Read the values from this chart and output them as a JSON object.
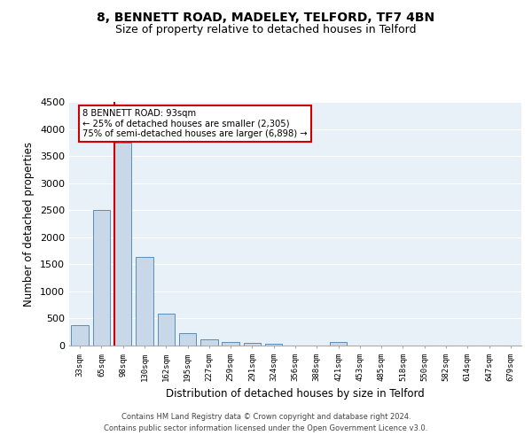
{
  "title": "8, BENNETT ROAD, MADELEY, TELFORD, TF7 4BN",
  "subtitle": "Size of property relative to detached houses in Telford",
  "xlabel": "Distribution of detached houses by size in Telford",
  "ylabel": "Number of detached properties",
  "categories": [
    "33sqm",
    "65sqm",
    "98sqm",
    "130sqm",
    "162sqm",
    "195sqm",
    "227sqm",
    "259sqm",
    "291sqm",
    "324sqm",
    "356sqm",
    "388sqm",
    "421sqm",
    "453sqm",
    "485sqm",
    "518sqm",
    "550sqm",
    "582sqm",
    "614sqm",
    "647sqm",
    "679sqm"
  ],
  "values": [
    370,
    2500,
    3750,
    1640,
    590,
    225,
    110,
    65,
    45,
    40,
    0,
    0,
    65,
    0,
    0,
    0,
    0,
    0,
    0,
    0,
    0
  ],
  "bar_color": "#c8d8e8",
  "bar_edge_color": "#5b8db8",
  "ylim": [
    0,
    4500
  ],
  "yticks": [
    0,
    500,
    1000,
    1500,
    2000,
    2500,
    3000,
    3500,
    4000,
    4500
  ],
  "red_line_color": "#cc0000",
  "annotation_text_line1": "8 BENNETT ROAD: 93sqm",
  "annotation_text_line2": "← 25% of detached houses are smaller (2,305)",
  "annotation_text_line3": "75% of semi-detached houses are larger (6,898) →",
  "annotation_box_color": "#ffffff",
  "annotation_box_edge": "#cc0000",
  "bg_color": "#e8f0f8",
  "footer_line1": "Contains HM Land Registry data © Crown copyright and database right 2024.",
  "footer_line2": "Contains public sector information licensed under the Open Government Licence v3.0.",
  "title_fontsize": 10,
  "subtitle_fontsize": 9,
  "xlabel_fontsize": 8.5,
  "ylabel_fontsize": 8.5
}
